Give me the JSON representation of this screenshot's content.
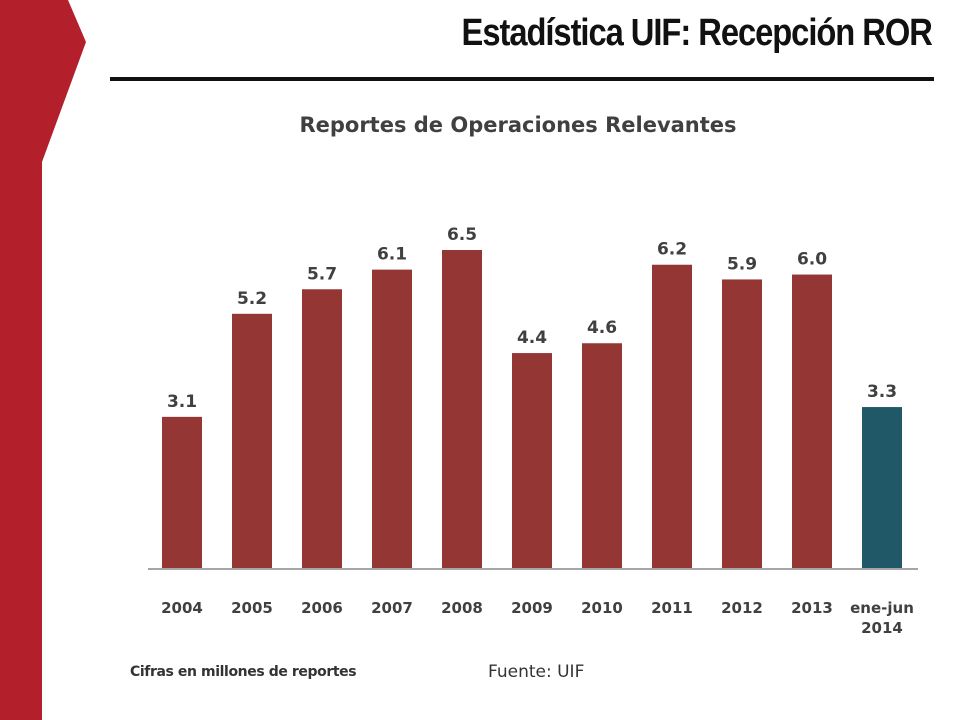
{
  "slide": {
    "title": "Estadística UIF: Recepción ROR",
    "accent_color": "#b31f2a"
  },
  "chart_data": {
    "type": "bar",
    "title": "Reportes de Operaciones Relevantes",
    "categories": [
      "2004",
      "2005",
      "2006",
      "2007",
      "2008",
      "2009",
      "2010",
      "2011",
      "2012",
      "2013",
      "ene-jun 2014"
    ],
    "values": [
      3.1,
      5.2,
      5.7,
      6.1,
      6.5,
      4.4,
      4.6,
      6.2,
      5.9,
      6.0,
      3.3
    ],
    "data_labels": [
      "3.1",
      "5.2",
      "5.7",
      "6.1",
      "6.5",
      "4.4",
      "4.6",
      "6.2",
      "5.9",
      "6.0",
      "3.3"
    ],
    "bar_colors": [
      "#943634",
      "#943634",
      "#943634",
      "#943634",
      "#943634",
      "#943634",
      "#943634",
      "#943634",
      "#943634",
      "#943634",
      "#215868"
    ],
    "ylim": [
      0,
      6.5
    ],
    "grid": false,
    "legend": "none",
    "note": "Cifras en millones de reportes",
    "source": "Fuente: UIF"
  }
}
